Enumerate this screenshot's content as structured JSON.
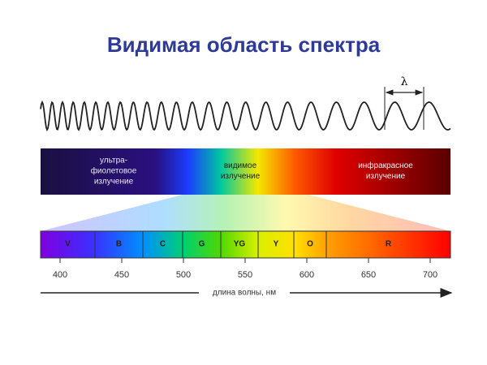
{
  "title": "Видимая область спектра",
  "wave": {
    "label": "λ"
  },
  "spectrum": {
    "ultraviolet": [
      "ультра-",
      "фиолетовое",
      "излучение"
    ],
    "visible": [
      "видимое",
      "излучение"
    ],
    "infrared": [
      "инфракрасное",
      "излучение"
    ]
  },
  "bands": [
    "V",
    "B",
    "C",
    "G",
    "YG",
    "Y",
    "O",
    "R"
  ],
  "axis": {
    "ticks": [
      400,
      450,
      500,
      550,
      600,
      650,
      700
    ],
    "label": "длина волны, нм"
  }
}
